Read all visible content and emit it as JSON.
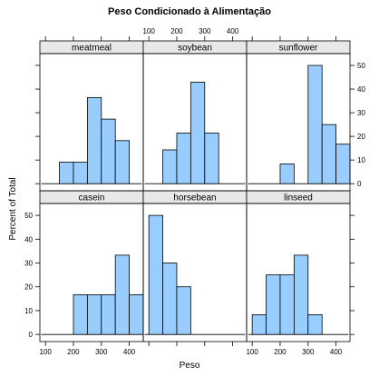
{
  "chart_data": {
    "type": "bar",
    "title": "Peso Condicionado à Alimentação",
    "xlabel": "Peso",
    "ylabel": "Percent of Total",
    "xlim": [
      80,
      450
    ],
    "ylim": [
      -3,
      55
    ],
    "x_ticks": [
      100,
      200,
      300,
      400
    ],
    "y_ticks": [
      0,
      10,
      20,
      30,
      40,
      50
    ],
    "bar_color": "#99ccff",
    "strip_color": "#e8e8e8",
    "grid": false,
    "panels": [
      {
        "name": "casein",
        "bins": [
          {
            "x0": 200,
            "x1": 250,
            "percent": 16.7
          },
          {
            "x0": 250,
            "x1": 300,
            "percent": 16.7
          },
          {
            "x0": 300,
            "x1": 350,
            "percent": 16.7
          },
          {
            "x0": 350,
            "x1": 400,
            "percent": 33.3
          },
          {
            "x0": 400,
            "x1": 450,
            "percent": 16.7
          }
        ]
      },
      {
        "name": "horsebean",
        "bins": [
          {
            "x0": 100,
            "x1": 150,
            "percent": 50
          },
          {
            "x0": 150,
            "x1": 200,
            "percent": 30
          },
          {
            "x0": 200,
            "x1": 250,
            "percent": 20
          }
        ]
      },
      {
        "name": "linseed",
        "bins": [
          {
            "x0": 100,
            "x1": 150,
            "percent": 8.3
          },
          {
            "x0": 150,
            "x1": 200,
            "percent": 25
          },
          {
            "x0": 200,
            "x1": 250,
            "percent": 25
          },
          {
            "x0": 250,
            "x1": 300,
            "percent": 33.3
          },
          {
            "x0": 300,
            "x1": 350,
            "percent": 8.3
          }
        ]
      },
      {
        "name": "meatmeal",
        "bins": [
          {
            "x0": 150,
            "x1": 200,
            "percent": 9.1
          },
          {
            "x0": 200,
            "x1": 250,
            "percent": 9.1
          },
          {
            "x0": 250,
            "x1": 300,
            "percent": 36.4
          },
          {
            "x0": 300,
            "x1": 350,
            "percent": 27.3
          },
          {
            "x0": 350,
            "x1": 400,
            "percent": 18.2
          }
        ]
      },
      {
        "name": "soybean",
        "bins": [
          {
            "x0": 150,
            "x1": 200,
            "percent": 14.3
          },
          {
            "x0": 200,
            "x1": 250,
            "percent": 21.4
          },
          {
            "x0": 250,
            "x1": 300,
            "percent": 42.9
          },
          {
            "x0": 300,
            "x1": 350,
            "percent": 21.4
          }
        ]
      },
      {
        "name": "sunflower",
        "bins": [
          {
            "x0": 200,
            "x1": 250,
            "percent": 8.3
          },
          {
            "x0": 300,
            "x1": 350,
            "percent": 50
          },
          {
            "x0": 350,
            "x1": 400,
            "percent": 25
          },
          {
            "x0": 400,
            "x1": 450,
            "percent": 16.7
          }
        ]
      }
    ]
  }
}
